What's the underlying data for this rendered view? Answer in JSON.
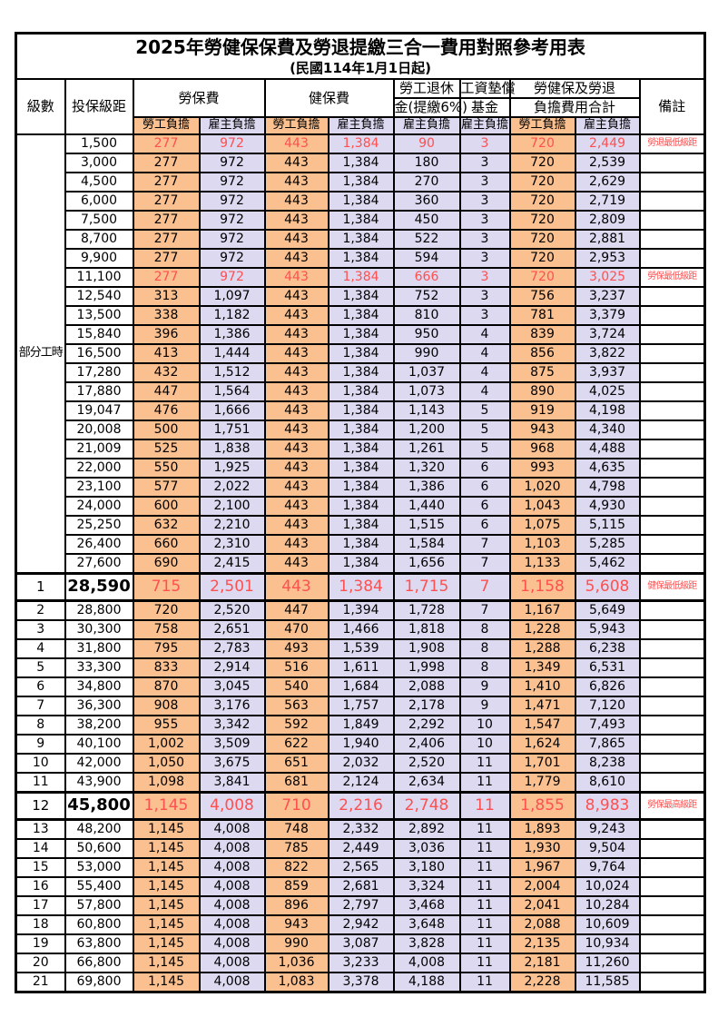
{
  "title": "2025年勞健保保費及勞退提繳三合一費用對照參考用表",
  "subtitle": "(民國114年1月1日起)",
  "header": {
    "level": "級數",
    "bracket": "投保級距",
    "labor_fee": "勞保費",
    "health_fee": "健保費",
    "pension_line1": "勞工退休",
    "pension_line2": "金(提繳6%)",
    "wage_fund_line1": "工資墊償",
    "wage_fund_line2": "基金",
    "total_line1": "勞健保及勞退",
    "total_line2": "負擔費用合計",
    "note": "備註",
    "employee_label": "勞工負擔",
    "employer_label": "雇主負擔"
  },
  "part_time_label": "部分工時",
  "colors": {
    "employee_bg": "#FAC090",
    "employer_bg": "#DCD9F1",
    "highlight_text": "#FF5050",
    "border": "#000000"
  },
  "rows": [
    {
      "level": "",
      "bracket": "1,500",
      "labor_emp": "277",
      "labor_er": "972",
      "health_emp": "443",
      "health_er": "1,384",
      "pension_er": "90",
      "fund_er": "3",
      "total_emp": "720",
      "total_er": "2,449",
      "note": "勞退最低級距",
      "highlight": true,
      "large": false
    },
    {
      "level": "",
      "bracket": "3,000",
      "labor_emp": "277",
      "labor_er": "972",
      "health_emp": "443",
      "health_er": "1,384",
      "pension_er": "180",
      "fund_er": "3",
      "total_emp": "720",
      "total_er": "2,539",
      "note": "",
      "highlight": false,
      "large": false
    },
    {
      "level": "",
      "bracket": "4,500",
      "labor_emp": "277",
      "labor_er": "972",
      "health_emp": "443",
      "health_er": "1,384",
      "pension_er": "270",
      "fund_er": "3",
      "total_emp": "720",
      "total_er": "2,629",
      "note": "",
      "highlight": false,
      "large": false
    },
    {
      "level": "",
      "bracket": "6,000",
      "labor_emp": "277",
      "labor_er": "972",
      "health_emp": "443",
      "health_er": "1,384",
      "pension_er": "360",
      "fund_er": "3",
      "total_emp": "720",
      "total_er": "2,719",
      "note": "",
      "highlight": false,
      "large": false
    },
    {
      "level": "",
      "bracket": "7,500",
      "labor_emp": "277",
      "labor_er": "972",
      "health_emp": "443",
      "health_er": "1,384",
      "pension_er": "450",
      "fund_er": "3",
      "total_emp": "720",
      "total_er": "2,809",
      "note": "",
      "highlight": false,
      "large": false
    },
    {
      "level": "",
      "bracket": "8,700",
      "labor_emp": "277",
      "labor_er": "972",
      "health_emp": "443",
      "health_er": "1,384",
      "pension_er": "522",
      "fund_er": "3",
      "total_emp": "720",
      "total_er": "2,881",
      "note": "",
      "highlight": false,
      "large": false
    },
    {
      "level": "",
      "bracket": "9,900",
      "labor_emp": "277",
      "labor_er": "972",
      "health_emp": "443",
      "health_er": "1,384",
      "pension_er": "594",
      "fund_er": "3",
      "total_emp": "720",
      "total_er": "2,953",
      "note": "",
      "highlight": false,
      "large": false
    },
    {
      "level": "",
      "bracket": "11,100",
      "labor_emp": "277",
      "labor_er": "972",
      "health_emp": "443",
      "health_er": "1,384",
      "pension_er": "666",
      "fund_er": "3",
      "total_emp": "720",
      "total_er": "3,025",
      "note": "勞保最低級距",
      "highlight": true,
      "large": false
    },
    {
      "level": "",
      "bracket": "12,540",
      "labor_emp": "313",
      "labor_er": "1,097",
      "health_emp": "443",
      "health_er": "1,384",
      "pension_er": "752",
      "fund_er": "3",
      "total_emp": "756",
      "total_er": "3,237",
      "note": "",
      "highlight": false,
      "large": false
    },
    {
      "level": "",
      "bracket": "13,500",
      "labor_emp": "338",
      "labor_er": "1,182",
      "health_emp": "443",
      "health_er": "1,384",
      "pension_er": "810",
      "fund_er": "3",
      "total_emp": "781",
      "total_er": "3,379",
      "note": "",
      "highlight": false,
      "large": false
    },
    {
      "level": "",
      "bracket": "15,840",
      "labor_emp": "396",
      "labor_er": "1,386",
      "health_emp": "443",
      "health_er": "1,384",
      "pension_er": "950",
      "fund_er": "4",
      "total_emp": "839",
      "total_er": "3,724",
      "note": "",
      "highlight": false,
      "large": false
    },
    {
      "level": "",
      "bracket": "16,500",
      "labor_emp": "413",
      "labor_er": "1,444",
      "health_emp": "443",
      "health_er": "1,384",
      "pension_er": "990",
      "fund_er": "4",
      "total_emp": "856",
      "total_er": "3,822",
      "note": "",
      "highlight": false,
      "large": false
    },
    {
      "level": "",
      "bracket": "17,280",
      "labor_emp": "432",
      "labor_er": "1,512",
      "health_emp": "443",
      "health_er": "1,384",
      "pension_er": "1,037",
      "fund_er": "4",
      "total_emp": "875",
      "total_er": "3,937",
      "note": "",
      "highlight": false,
      "large": false
    },
    {
      "level": "",
      "bracket": "17,880",
      "labor_emp": "447",
      "labor_er": "1,564",
      "health_emp": "443",
      "health_er": "1,384",
      "pension_er": "1,073",
      "fund_er": "4",
      "total_emp": "890",
      "total_er": "4,025",
      "note": "",
      "highlight": false,
      "large": false
    },
    {
      "level": "",
      "bracket": "19,047",
      "labor_emp": "476",
      "labor_er": "1,666",
      "health_emp": "443",
      "health_er": "1,384",
      "pension_er": "1,143",
      "fund_er": "5",
      "total_emp": "919",
      "total_er": "4,198",
      "note": "",
      "highlight": false,
      "large": false
    },
    {
      "level": "",
      "bracket": "20,008",
      "labor_emp": "500",
      "labor_er": "1,751",
      "health_emp": "443",
      "health_er": "1,384",
      "pension_er": "1,200",
      "fund_er": "5",
      "total_emp": "943",
      "total_er": "4,340",
      "note": "",
      "highlight": false,
      "large": false
    },
    {
      "level": "",
      "bracket": "21,009",
      "labor_emp": "525",
      "labor_er": "1,838",
      "health_emp": "443",
      "health_er": "1,384",
      "pension_er": "1,261",
      "fund_er": "5",
      "total_emp": "968",
      "total_er": "4,488",
      "note": "",
      "highlight": false,
      "large": false
    },
    {
      "level": "",
      "bracket": "22,000",
      "labor_emp": "550",
      "labor_er": "1,925",
      "health_emp": "443",
      "health_er": "1,384",
      "pension_er": "1,320",
      "fund_er": "6",
      "total_emp": "993",
      "total_er": "4,635",
      "note": "",
      "highlight": false,
      "large": false
    },
    {
      "level": "",
      "bracket": "23,100",
      "labor_emp": "577",
      "labor_er": "2,022",
      "health_emp": "443",
      "health_er": "1,384",
      "pension_er": "1,386",
      "fund_er": "6",
      "total_emp": "1,020",
      "total_er": "4,798",
      "note": "",
      "highlight": false,
      "large": false
    },
    {
      "level": "",
      "bracket": "24,000",
      "labor_emp": "600",
      "labor_er": "2,100",
      "health_emp": "443",
      "health_er": "1,384",
      "pension_er": "1,440",
      "fund_er": "6",
      "total_emp": "1,043",
      "total_er": "4,930",
      "note": "",
      "highlight": false,
      "large": false
    },
    {
      "level": "",
      "bracket": "25,250",
      "labor_emp": "632",
      "labor_er": "2,210",
      "health_emp": "443",
      "health_er": "1,384",
      "pension_er": "1,515",
      "fund_er": "6",
      "total_emp": "1,075",
      "total_er": "5,115",
      "note": "",
      "highlight": false,
      "large": false
    },
    {
      "level": "",
      "bracket": "26,400",
      "labor_emp": "660",
      "labor_er": "2,310",
      "health_emp": "443",
      "health_er": "1,384",
      "pension_er": "1,584",
      "fund_er": "7",
      "total_emp": "1,103",
      "total_er": "5,285",
      "note": "",
      "highlight": false,
      "large": false
    },
    {
      "level": "",
      "bracket": "27,600",
      "labor_emp": "690",
      "labor_er": "2,415",
      "health_emp": "443",
      "health_er": "1,384",
      "pension_er": "1,656",
      "fund_er": "7",
      "total_emp": "1,133",
      "total_er": "5,462",
      "note": "",
      "highlight": false,
      "large": false
    },
    {
      "level": "1",
      "bracket": "28,590",
      "labor_emp": "715",
      "labor_er": "2,501",
      "health_emp": "443",
      "health_er": "1,384",
      "pension_er": "1,715",
      "fund_er": "7",
      "total_emp": "1,158",
      "total_er": "5,608",
      "note": "健保最低級距",
      "highlight": true,
      "large": true
    },
    {
      "level": "2",
      "bracket": "28,800",
      "labor_emp": "720",
      "labor_er": "2,520",
      "health_emp": "447",
      "health_er": "1,394",
      "pension_er": "1,728",
      "fund_er": "7",
      "total_emp": "1,167",
      "total_er": "5,649",
      "note": "",
      "highlight": false,
      "large": false
    },
    {
      "level": "3",
      "bracket": "30,300",
      "labor_emp": "758",
      "labor_er": "2,651",
      "health_emp": "470",
      "health_er": "1,466",
      "pension_er": "1,818",
      "fund_er": "8",
      "total_emp": "1,228",
      "total_er": "5,943",
      "note": "",
      "highlight": false,
      "large": false
    },
    {
      "level": "4",
      "bracket": "31,800",
      "labor_emp": "795",
      "labor_er": "2,783",
      "health_emp": "493",
      "health_er": "1,539",
      "pension_er": "1,908",
      "fund_er": "8",
      "total_emp": "1,288",
      "total_er": "6,238",
      "note": "",
      "highlight": false,
      "large": false
    },
    {
      "level": "5",
      "bracket": "33,300",
      "labor_emp": "833",
      "labor_er": "2,914",
      "health_emp": "516",
      "health_er": "1,611",
      "pension_er": "1,998",
      "fund_er": "8",
      "total_emp": "1,349",
      "total_er": "6,531",
      "note": "",
      "highlight": false,
      "large": false
    },
    {
      "level": "6",
      "bracket": "34,800",
      "labor_emp": "870",
      "labor_er": "3,045",
      "health_emp": "540",
      "health_er": "1,684",
      "pension_er": "2,088",
      "fund_er": "9",
      "total_emp": "1,410",
      "total_er": "6,826",
      "note": "",
      "highlight": false,
      "large": false
    },
    {
      "level": "7",
      "bracket": "36,300",
      "labor_emp": "908",
      "labor_er": "3,176",
      "health_emp": "563",
      "health_er": "1,757",
      "pension_er": "2,178",
      "fund_er": "9",
      "total_emp": "1,471",
      "total_er": "7,120",
      "note": "",
      "highlight": false,
      "large": false
    },
    {
      "level": "8",
      "bracket": "38,200",
      "labor_emp": "955",
      "labor_er": "3,342",
      "health_emp": "592",
      "health_er": "1,849",
      "pension_er": "2,292",
      "fund_er": "10",
      "total_emp": "1,547",
      "total_er": "7,493",
      "note": "",
      "highlight": false,
      "large": false
    },
    {
      "level": "9",
      "bracket": "40,100",
      "labor_emp": "1,002",
      "labor_er": "3,509",
      "health_emp": "622",
      "health_er": "1,940",
      "pension_er": "2,406",
      "fund_er": "10",
      "total_emp": "1,624",
      "total_er": "7,865",
      "note": "",
      "highlight": false,
      "large": false
    },
    {
      "level": "10",
      "bracket": "42,000",
      "labor_emp": "1,050",
      "labor_er": "3,675",
      "health_emp": "651",
      "health_er": "2,032",
      "pension_er": "2,520",
      "fund_er": "11",
      "total_emp": "1,701",
      "total_er": "8,238",
      "note": "",
      "highlight": false,
      "large": false
    },
    {
      "level": "11",
      "bracket": "43,900",
      "labor_emp": "1,098",
      "labor_er": "3,841",
      "health_emp": "681",
      "health_er": "2,124",
      "pension_er": "2,634",
      "fund_er": "11",
      "total_emp": "1,779",
      "total_er": "8,610",
      "note": "",
      "highlight": false,
      "large": false
    },
    {
      "level": "12",
      "bracket": "45,800",
      "labor_emp": "1,145",
      "labor_er": "4,008",
      "health_emp": "710",
      "health_er": "2,216",
      "pension_er": "2,748",
      "fund_er": "11",
      "total_emp": "1,855",
      "total_er": "8,983",
      "note": "勞保最高級距",
      "highlight": true,
      "large": true
    },
    {
      "level": "13",
      "bracket": "48,200",
      "labor_emp": "1,145",
      "labor_er": "4,008",
      "health_emp": "748",
      "health_er": "2,332",
      "pension_er": "2,892",
      "fund_er": "11",
      "total_emp": "1,893",
      "total_er": "9,243",
      "note": "",
      "highlight": false,
      "large": false
    },
    {
      "level": "14",
      "bracket": "50,600",
      "labor_emp": "1,145",
      "labor_er": "4,008",
      "health_emp": "785",
      "health_er": "2,449",
      "pension_er": "3,036",
      "fund_er": "11",
      "total_emp": "1,930",
      "total_er": "9,504",
      "note": "",
      "highlight": false,
      "large": false
    },
    {
      "level": "15",
      "bracket": "53,000",
      "labor_emp": "1,145",
      "labor_er": "4,008",
      "health_emp": "822",
      "health_er": "2,565",
      "pension_er": "3,180",
      "fund_er": "11",
      "total_emp": "1,967",
      "total_er": "9,764",
      "note": "",
      "highlight": false,
      "large": false
    },
    {
      "level": "16",
      "bracket": "55,400",
      "labor_emp": "1,145",
      "labor_er": "4,008",
      "health_emp": "859",
      "health_er": "2,681",
      "pension_er": "3,324",
      "fund_er": "11",
      "total_emp": "2,004",
      "total_er": "10,024",
      "note": "",
      "highlight": false,
      "large": false
    },
    {
      "level": "17",
      "bracket": "57,800",
      "labor_emp": "1,145",
      "labor_er": "4,008",
      "health_emp": "896",
      "health_er": "2,797",
      "pension_er": "3,468",
      "fund_er": "11",
      "total_emp": "2,041",
      "total_er": "10,284",
      "note": "",
      "highlight": false,
      "large": false
    },
    {
      "level": "18",
      "bracket": "60,800",
      "labor_emp": "1,145",
      "labor_er": "4,008",
      "health_emp": "943",
      "health_er": "2,942",
      "pension_er": "3,648",
      "fund_er": "11",
      "total_emp": "2,088",
      "total_er": "10,609",
      "note": "",
      "highlight": false,
      "large": false
    },
    {
      "level": "19",
      "bracket": "63,800",
      "labor_emp": "1,145",
      "labor_er": "4,008",
      "health_emp": "990",
      "health_er": "3,087",
      "pension_er": "3,828",
      "fund_er": "11",
      "total_emp": "2,135",
      "total_er": "10,934",
      "note": "",
      "highlight": false,
      "large": false
    },
    {
      "level": "20",
      "bracket": "66,800",
      "labor_emp": "1,145",
      "labor_er": "4,008",
      "health_emp": "1,036",
      "health_er": "3,233",
      "pension_er": "4,008",
      "fund_er": "11",
      "total_emp": "2,181",
      "total_er": "11,260",
      "note": "",
      "highlight": false,
      "large": false
    },
    {
      "level": "21",
      "bracket": "69,800",
      "labor_emp": "1,145",
      "labor_er": "4,008",
      "health_emp": "1,083",
      "health_er": "3,378",
      "pension_er": "4,188",
      "fund_er": "11",
      "total_emp": "2,228",
      "total_er": "11,585",
      "note": "",
      "highlight": false,
      "large": false
    }
  ]
}
